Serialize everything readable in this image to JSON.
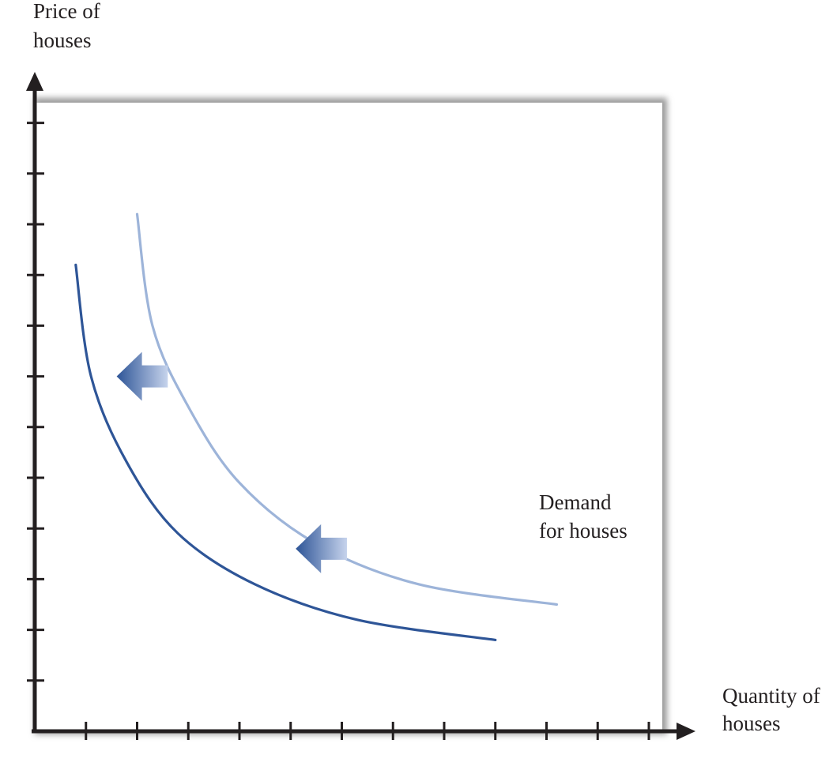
{
  "chart_data": {
    "type": "line",
    "title": "",
    "ylabel": [
      "Price of",
      "houses"
    ],
    "xlabel": [
      "Quantity of",
      "houses"
    ],
    "xlim": [
      0,
      12
    ],
    "ylim": [
      0,
      12
    ],
    "x_ticks": [
      1,
      2,
      3,
      4,
      5,
      6,
      7,
      8,
      9,
      10,
      11,
      12
    ],
    "y_ticks": [
      1,
      2,
      3,
      4,
      5,
      6,
      7,
      8,
      9,
      10,
      11,
      12
    ],
    "grid": false,
    "tick_labels_shown": false,
    "series": [
      {
        "key": "original_demand",
        "color": "#9db4d9",
        "points": [
          [
            2.0,
            10.2
          ],
          [
            2.3,
            8.0
          ],
          [
            3.0,
            6.4
          ],
          [
            4.0,
            4.9
          ],
          [
            5.5,
            3.7
          ],
          [
            7.5,
            2.9
          ],
          [
            10.2,
            2.5
          ]
        ]
      },
      {
        "key": "shifted_demand",
        "color": "#2e5597",
        "points": [
          [
            0.8,
            9.2
          ],
          [
            1.1,
            7.0
          ],
          [
            1.8,
            5.3
          ],
          [
            2.8,
            3.9
          ],
          [
            4.3,
            2.9
          ],
          [
            6.3,
            2.2
          ],
          [
            9.0,
            1.8
          ]
        ]
      }
    ],
    "annotations": [
      {
        "key": "curve_label",
        "lines": [
          "Demand",
          "for houses"
        ],
        "anchor": [
          9.9,
          3.4
        ]
      }
    ],
    "shift_arrows": [
      {
        "key": "arrow_upper",
        "from": [
          2.6,
          7.0
        ],
        "to": [
          1.6,
          7.0
        ],
        "direction": "left"
      },
      {
        "key": "arrow_lower",
        "from": [
          6.1,
          3.6
        ],
        "to": [
          5.1,
          3.6
        ],
        "direction": "left"
      }
    ],
    "colors": {
      "axis": "#231f20",
      "panel_fill": "#ffffff",
      "panel_shadow": "#9a9a9a",
      "arrow_dark": "#2e5597",
      "arrow_light": "#c6d3ec"
    }
  }
}
